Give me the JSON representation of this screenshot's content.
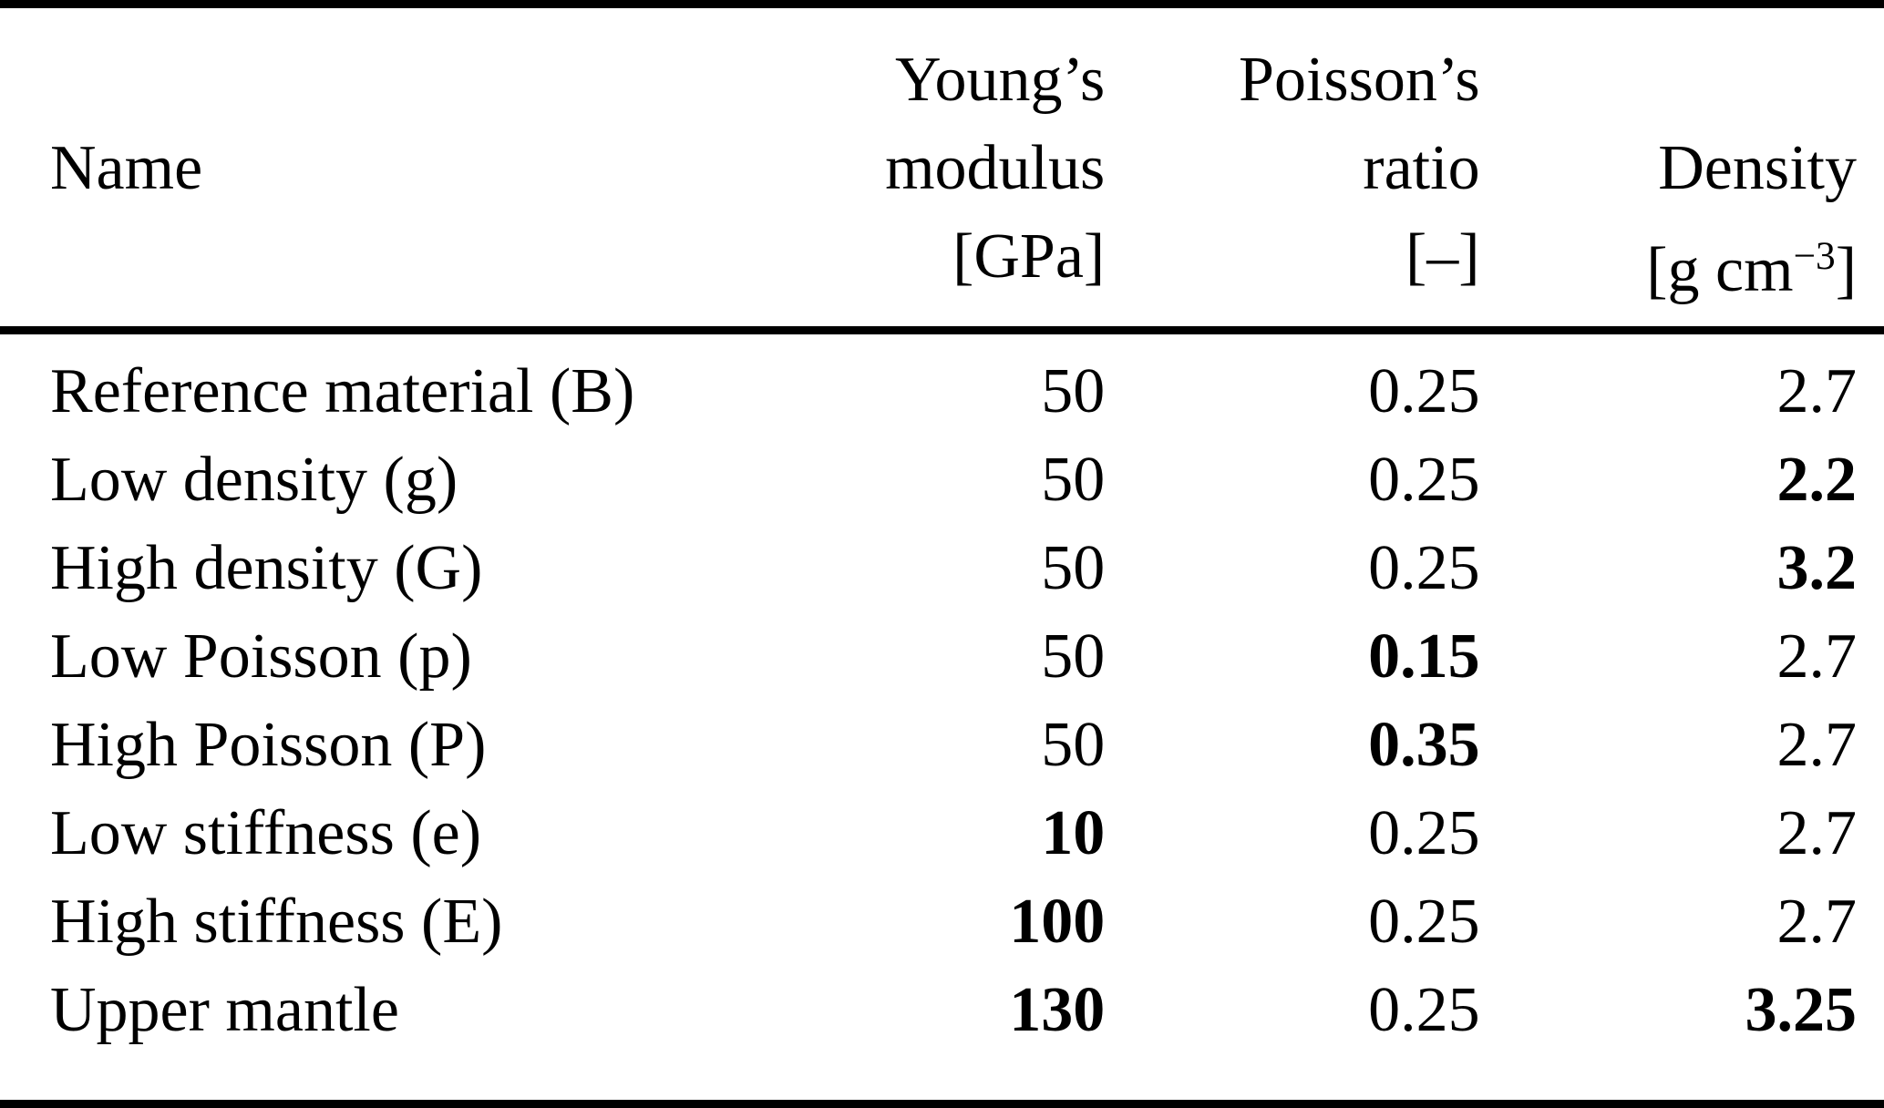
{
  "colors": {
    "background": "#ffffff",
    "text": "#000000",
    "rule": "#000000"
  },
  "table": {
    "header": [
      {
        "lines": [
          "",
          "Name",
          ""
        ]
      },
      {
        "lines": [
          "Young’s",
          "modulus",
          "[GPa]"
        ]
      },
      {
        "lines": [
          "Poisson’s",
          "ratio",
          "[–]"
        ]
      },
      {
        "lines": [
          "",
          "Density",
          ""
        ],
        "unit_base": "[g cm",
        "unit_sup": "−3",
        "unit_close": "]"
      }
    ],
    "rows": [
      {
        "name": "Reference material (B)",
        "young": "50",
        "poisson": "0.25",
        "density": "2.7",
        "bold": []
      },
      {
        "name": "Low density (g)",
        "young": "50",
        "poisson": "0.25",
        "density": "2.2",
        "bold": [
          "density"
        ]
      },
      {
        "name": "High density (G)",
        "young": "50",
        "poisson": "0.25",
        "density": "3.2",
        "bold": [
          "density"
        ]
      },
      {
        "name": "Low Poisson (p)",
        "young": "50",
        "poisson": "0.15",
        "density": "2.7",
        "bold": [
          "poisson"
        ]
      },
      {
        "name": "High Poisson (P)",
        "young": "50",
        "poisson": "0.35",
        "density": "2.7",
        "bold": [
          "poisson"
        ]
      },
      {
        "name": "Low stiffness (e)",
        "young": "10",
        "poisson": "0.25",
        "density": "2.7",
        "bold": [
          "young"
        ]
      },
      {
        "name": "High stiffness (E)",
        "young": "100",
        "poisson": "0.25",
        "density": "2.7",
        "bold": [
          "young"
        ]
      },
      {
        "name": "Upper mantle",
        "young": "130",
        "poisson": "0.25",
        "density": "3.25",
        "bold": [
          "young",
          "density"
        ]
      }
    ]
  }
}
